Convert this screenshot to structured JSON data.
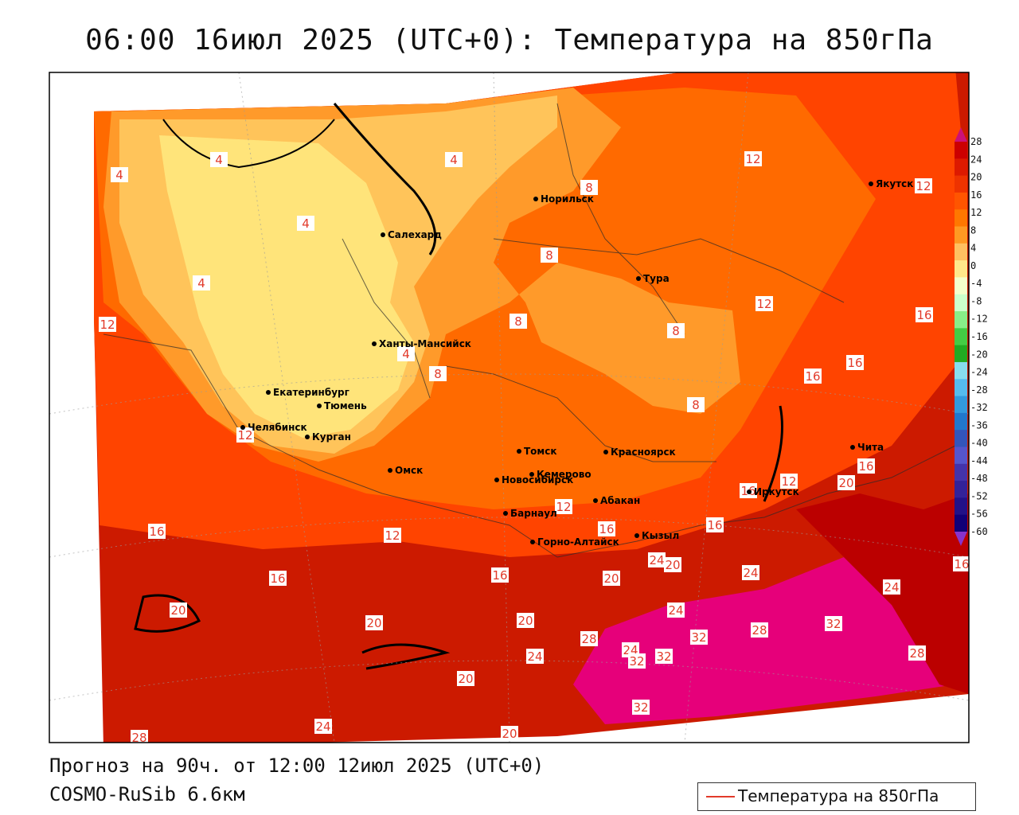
{
  "title": "06:00 16июл 2025 (UTC+0): Температура на 850гПа",
  "footer": {
    "forecast": "Прогноз на 90ч. от 12:00 12июл 2025 (UTC+0)",
    "model": "COSMO-RuSib 6.6км"
  },
  "legend": {
    "label": "Температура на 850гПа",
    "line_color": "#e23a2a"
  },
  "colorbar": {
    "ticks": [
      "28",
      "24",
      "20",
      "16",
      "12",
      "8",
      "4",
      "0",
      "-4",
      "-8",
      "-12",
      "-16",
      "-20",
      "-24",
      "-28",
      "-32",
      "-36",
      "-40",
      "-44",
      "-48",
      "-52",
      "-56",
      "-60"
    ],
    "colors": [
      "#cc0000",
      "#dd1a00",
      "#ee3300",
      "#ff5500",
      "#ff7700",
      "#ff9922",
      "#ffc060",
      "#ffe88a",
      "#f4ffcc",
      "#ccffcc",
      "#88ee88",
      "#44cc44",
      "#22aa22",
      "#88ddee",
      "#55bbee",
      "#3399dd",
      "#2277cc",
      "#3355bb",
      "#5555cc",
      "#4433aa",
      "#332299",
      "#221188",
      "#110077"
    ]
  },
  "cities": [
    {
      "name": "Норильск"
    },
    {
      "name": "Якутск"
    },
    {
      "name": "Салехард"
    },
    {
      "name": "Тура"
    },
    {
      "name": "Ханты-Мансийск"
    },
    {
      "name": "Екатеринбург"
    },
    {
      "name": "Тюмень"
    },
    {
      "name": "Челябинск"
    },
    {
      "name": "Курган"
    },
    {
      "name": "Омск"
    },
    {
      "name": "Новосибирск"
    },
    {
      "name": "Томск"
    },
    {
      "name": "Кемерово"
    },
    {
      "name": "Красноярск"
    },
    {
      "name": "Барнаул"
    },
    {
      "name": "Абакан"
    },
    {
      "name": "Горно-Алтайск"
    },
    {
      "name": "Кызыл"
    },
    {
      "name": "Иркутск"
    },
    {
      "name": "Чита"
    }
  ],
  "contour_labels": [
    "4",
    "4",
    "4",
    "4",
    "4",
    "4",
    "8",
    "8",
    "8",
    "8",
    "8",
    "8",
    "12",
    "12",
    "12",
    "12",
    "12",
    "12",
    "12",
    "12",
    "16",
    "16",
    "16",
    "16",
    "16",
    "16",
    "16",
    "16",
    "16",
    "16",
    "16",
    "20",
    "20",
    "20",
    "20",
    "20",
    "20",
    "20",
    "20",
    "24",
    "24",
    "24",
    "24",
    "24",
    "24",
    "24",
    "28",
    "28",
    "28",
    "28",
    "32",
    "32",
    "32",
    "32",
    "32"
  ]
}
